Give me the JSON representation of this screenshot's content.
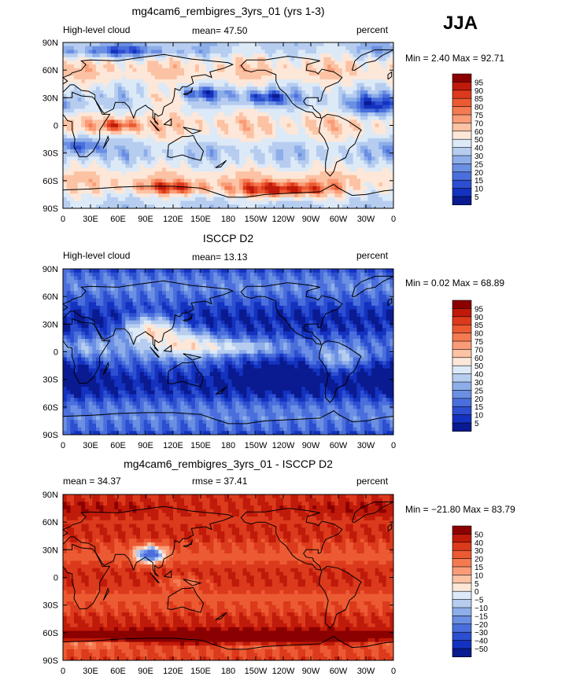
{
  "header": {
    "season": "JJA"
  },
  "chart_data": [
    {
      "type": "heatmap",
      "title": "mg4cam6_rembigres_3yrs_01 (yrs 1-3)",
      "left_label": "High-level cloud",
      "center_label": "mean=  47.50",
      "right_label": "percent",
      "min_max": "Min =   2.40 Max =  92.71",
      "mean": 47.5,
      "min": 2.4,
      "max": 92.71,
      "xticks": [
        "0",
        "30E",
        "60E",
        "90E",
        "120E",
        "150E",
        "180",
        "150W",
        "120W",
        "90W",
        "60W",
        "30W",
        "0"
      ],
      "yticks": [
        "90N",
        "60N",
        "30N",
        "0",
        "30S",
        "60S",
        "90S"
      ],
      "colorbar_labels": [
        "95",
        "90",
        "85",
        "80",
        "75",
        "70",
        "60",
        "50",
        "40",
        "30",
        "25",
        "20",
        "15",
        "10",
        "5"
      ],
      "colors": [
        "#8b0000",
        "#c01a0a",
        "#dc3a1c",
        "#ec5a33",
        "#f47a52",
        "#f99c77",
        "#fcc2a4",
        "#fde7d8",
        "#dce9f7",
        "#b6cdf0",
        "#8eaee9",
        "#6b8fe3",
        "#4a6fdc",
        "#2c4fd1",
        "#1432c0",
        "#0a1a90"
      ]
    },
    {
      "type": "heatmap",
      "title": "ISCCP D2",
      "left_label": "High-level cloud",
      "center_label": "mean=  13.13",
      "right_label": "percent",
      "min_max": "Min =   0.02 Max =  68.89",
      "mean": 13.13,
      "min": 0.02,
      "max": 68.89,
      "xticks": [
        "0",
        "30E",
        "60E",
        "90E",
        "120E",
        "150E",
        "180",
        "150W",
        "120W",
        "90W",
        "60W",
        "30W",
        "0"
      ],
      "yticks": [
        "90N",
        "60N",
        "30N",
        "0",
        "30S",
        "60S",
        "90S"
      ],
      "colorbar_labels": [
        "95",
        "90",
        "85",
        "80",
        "75",
        "70",
        "60",
        "50",
        "40",
        "30",
        "25",
        "20",
        "15",
        "10",
        "5"
      ],
      "colors": [
        "#8b0000",
        "#c01a0a",
        "#dc3a1c",
        "#ec5a33",
        "#f47a52",
        "#f99c77",
        "#fcc2a4",
        "#fde7d8",
        "#dce9f7",
        "#b6cdf0",
        "#8eaee9",
        "#6b8fe3",
        "#4a6fdc",
        "#2c4fd1",
        "#1432c0",
        "#0a1a90"
      ]
    },
    {
      "type": "heatmap",
      "title": "mg4cam6_rembigres_3yrs_01 - ISCCP D2",
      "left_label": "mean =   34.37",
      "center_label": "rmse =   37.41",
      "right_label": "percent",
      "min_max": "Min = −21.80 Max =  83.79",
      "mean": 34.37,
      "rmse": 37.41,
      "min": -21.8,
      "max": 83.79,
      "xticks": [
        "0",
        "30E",
        "60E",
        "90E",
        "120E",
        "150E",
        "180",
        "150W",
        "120W",
        "90W",
        "60W",
        "30W",
        "0"
      ],
      "yticks": [
        "90N",
        "60N",
        "30N",
        "0",
        "30S",
        "60S",
        "90S"
      ],
      "colorbar_labels": [
        "50",
        "40",
        "30",
        "20",
        "15",
        "10",
        "5",
        "0",
        "−5",
        "−10",
        "−15",
        "−20",
        "−30",
        "−40",
        "−50"
      ],
      "colors": [
        "#8b0000",
        "#c01a0a",
        "#dc3a1c",
        "#ec5a33",
        "#f47a52",
        "#f99c77",
        "#fcc2a4",
        "#fde7d8",
        "#dce9f7",
        "#b6cdf0",
        "#8eaee9",
        "#6b8fe3",
        "#4a6fdc",
        "#2c4fd1",
        "#1432c0",
        "#0a1a90"
      ]
    }
  ]
}
